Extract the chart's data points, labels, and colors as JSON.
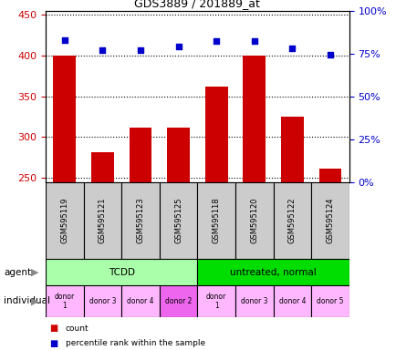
{
  "title": "GDS3889 / 201889_at",
  "samples": [
    "GSM595119",
    "GSM595121",
    "GSM595123",
    "GSM595125",
    "GSM595118",
    "GSM595120",
    "GSM595122",
    "GSM595124"
  ],
  "counts": [
    400,
    281,
    312,
    312,
    362,
    400,
    325,
    261
  ],
  "percentile_ranks": [
    83,
    77,
    77,
    79,
    82,
    82,
    78,
    74
  ],
  "ylim_left": [
    245,
    455
  ],
  "ylim_right": [
    0,
    100
  ],
  "yticks_left": [
    250,
    300,
    350,
    400,
    450
  ],
  "yticks_right": [
    0,
    25,
    50,
    75,
    100
  ],
  "agent_groups": [
    {
      "label": "TCDD",
      "start": 0,
      "end": 4,
      "color": "#AAFFAA"
    },
    {
      "label": "untreated, normal",
      "start": 4,
      "end": 8,
      "color": "#00DD00"
    }
  ],
  "individual_labels": [
    "donor\n1",
    "donor 3",
    "donor 4",
    "donor 2",
    "donor\n1",
    "donor 3",
    "donor 4",
    "donor 5"
  ],
  "individual_colors": [
    "#FFB8FF",
    "#FFB8FF",
    "#FFB8FF",
    "#EE66EE",
    "#FFB8FF",
    "#FFB8FF",
    "#FFB8FF",
    "#FFB8FF"
  ],
  "bar_color": "#CC0000",
  "dot_color": "#0000CC",
  "bar_bottom": 245,
  "grid_color": "black",
  "bg_color": "#FFFFFF",
  "tick_label_color_left": "#CC0000",
  "tick_label_color_right": "#0000CC",
  "sample_box_color": "#CCCCCC"
}
